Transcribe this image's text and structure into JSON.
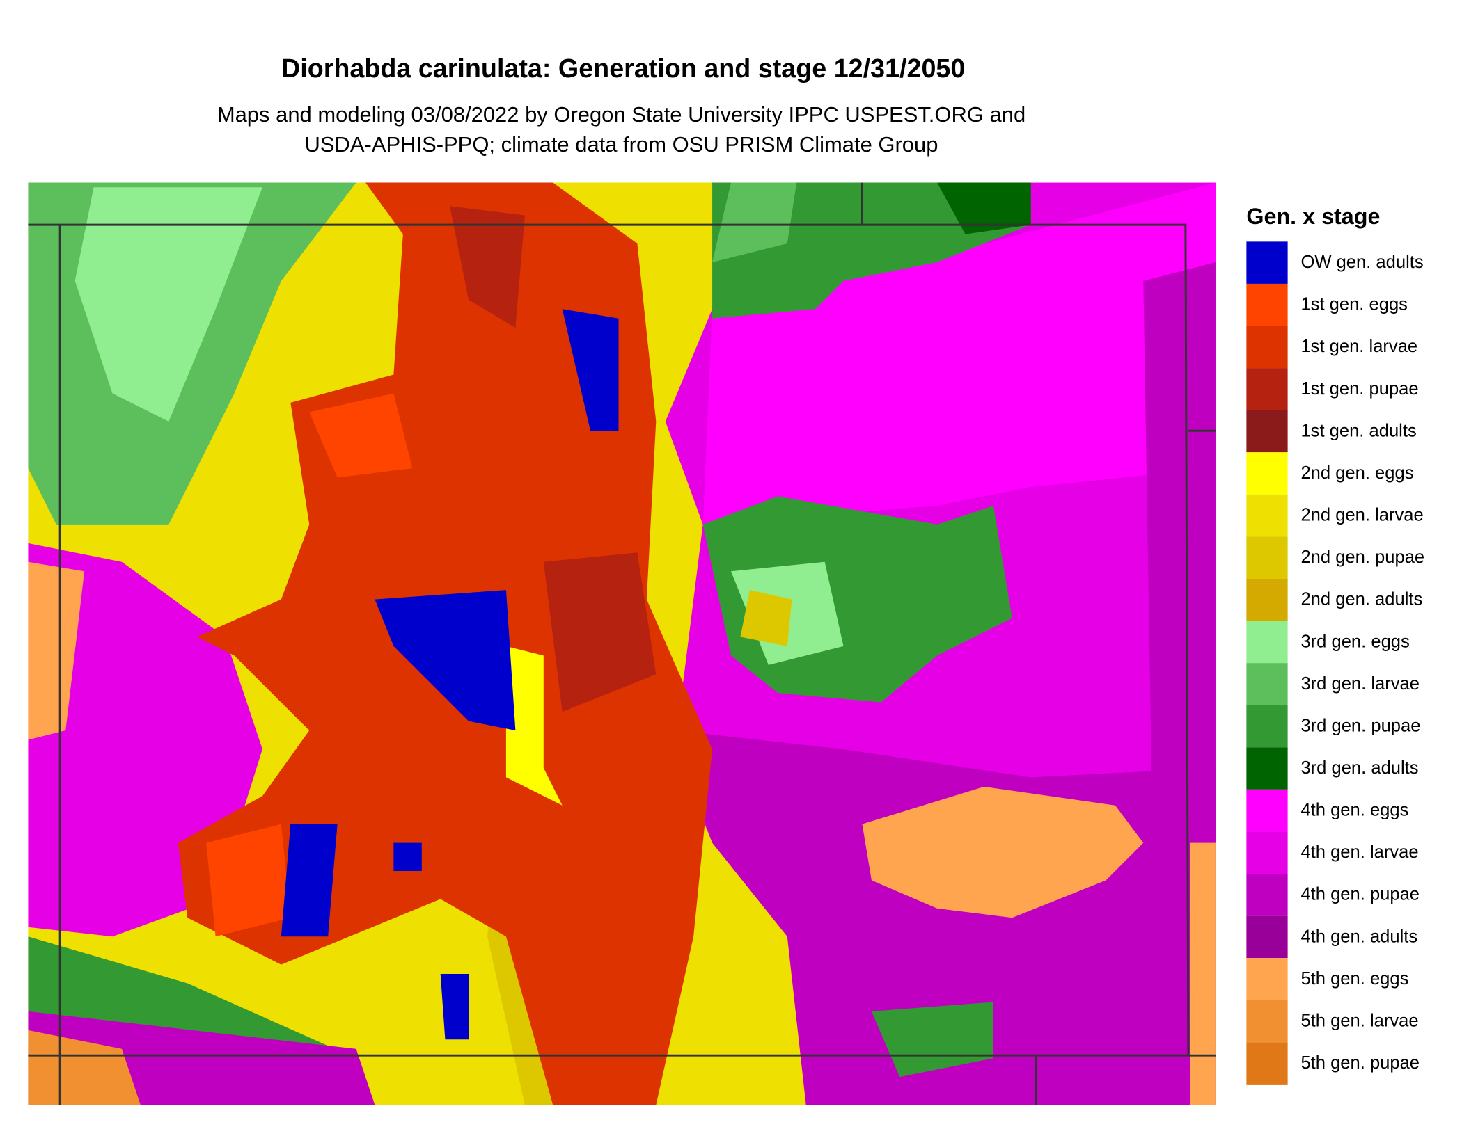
{
  "title": "Diorhabda carinulata: Generation and stage 12/31/2050",
  "subtitle": [
    "Maps and modeling 03/08/2022 by Oregon State University IPPC USPEST.ORG and",
    "USDA-APHIS-PPQ; climate data from OSU PRISM Climate Group"
  ],
  "legend": {
    "title": "Gen. x stage",
    "items": [
      {
        "label": "OW gen. adults",
        "color": "#0000cc"
      },
      {
        "label": "1st gen. eggs",
        "color": "#ff4400"
      },
      {
        "label": "1st gen. larvae",
        "color": "#dd3300"
      },
      {
        "label": "1st gen. pupae",
        "color": "#b52210"
      },
      {
        "label": "1st gen. adults",
        "color": "#8b1a1a"
      },
      {
        "label": "2nd gen. eggs",
        "color": "#ffff00"
      },
      {
        "label": "2nd gen. larvae",
        "color": "#eee000"
      },
      {
        "label": "2nd gen. pupae",
        "color": "#ddc800"
      },
      {
        "label": "2nd gen. adults",
        "color": "#d4aa00"
      },
      {
        "label": "3rd gen. eggs",
        "color": "#90ee90"
      },
      {
        "label": "3rd gen. larvae",
        "color": "#5cbf5c"
      },
      {
        "label": "3rd gen. pupae",
        "color": "#339933"
      },
      {
        "label": "3rd gen. adults",
        "color": "#006400"
      },
      {
        "label": "4th gen. eggs",
        "color": "#ff00ff"
      },
      {
        "label": "4th gen. larvae",
        "color": "#e600e6"
      },
      {
        "label": "4th gen. pupae",
        "color": "#c000c0"
      },
      {
        "label": "4th gen. adults",
        "color": "#990099"
      },
      {
        "label": "5th gen. eggs",
        "color": "#ffa54f"
      },
      {
        "label": "5th gen. larvae",
        "color": "#f09030"
      },
      {
        "label": "5th gen. pupae",
        "color": "#e07818"
      }
    ]
  }
}
